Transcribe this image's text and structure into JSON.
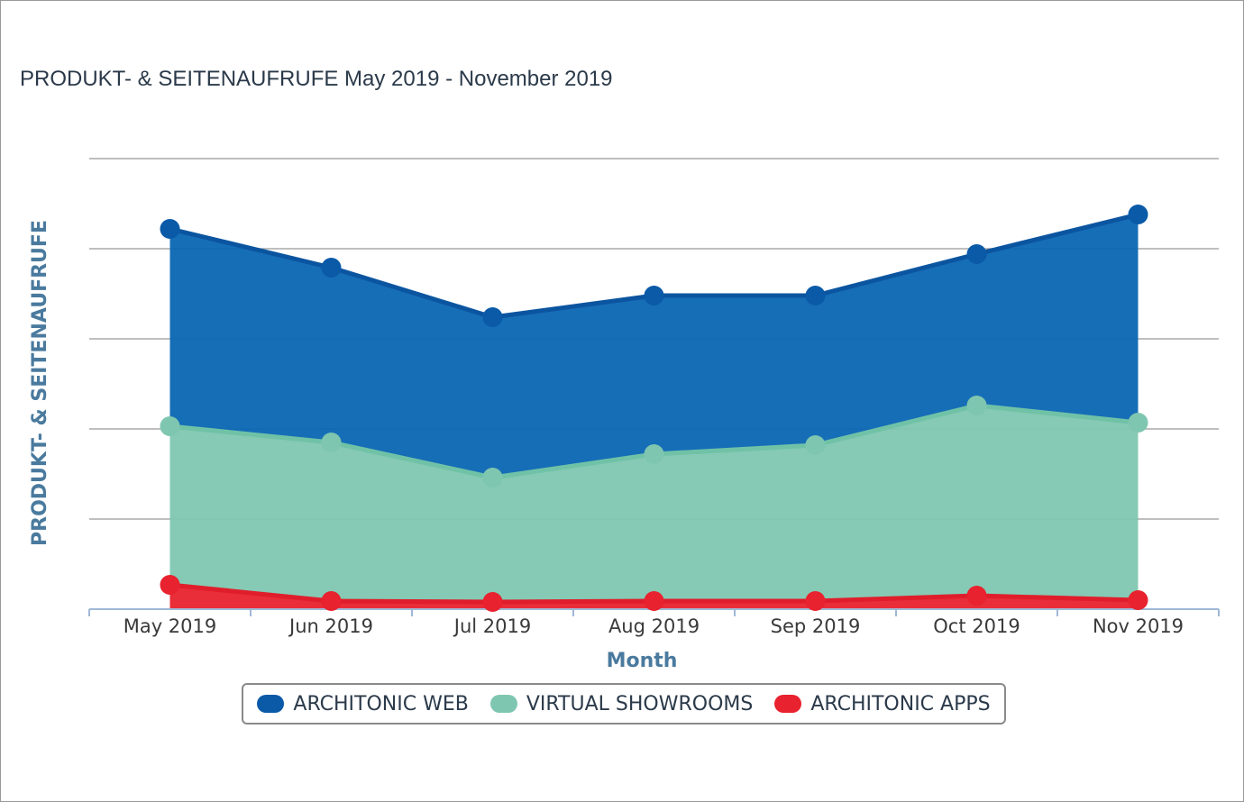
{
  "chart_data": {
    "type": "area",
    "stacked": true,
    "title": "PRODUKT- & SEITENAUFRUFE May 2019 - November 2019",
    "xlabel": "Month",
    "ylabel": "PRODUKT- & SEITENAUFRUFE",
    "categories": [
      "May 2019",
      "Jun 2019",
      "Jul 2019",
      "Aug 2019",
      "Sep 2019",
      "Oct 2019",
      "Nov 2019"
    ],
    "ylim": [
      0,
      5
    ],
    "grid": true,
    "legend_position": "bottom-center",
    "series": [
      {
        "name": "ARCHITONIC APPS",
        "color": "#e8222e",
        "values": [
          0.27,
          0.09,
          0.08,
          0.09,
          0.09,
          0.15,
          0.1
        ]
      },
      {
        "name": "VIRTUAL SHOWROOMS",
        "color": "#7fc6b0",
        "values": [
          1.76,
          1.76,
          1.38,
          1.63,
          1.73,
          2.11,
          1.97
        ]
      },
      {
        "name": "ARCHITONIC WEB",
        "color": "#0a66b3",
        "values": [
          2.19,
          1.94,
          1.78,
          1.76,
          1.66,
          1.68,
          2.31
        ]
      }
    ]
  },
  "legend": {
    "items": [
      {
        "label": "ARCHITONIC WEB",
        "color": "#0a5aa8"
      },
      {
        "label": "VIRTUAL SHOWROOMS",
        "color": "#7fc6b0"
      },
      {
        "label": "ARCHITONIC APPS",
        "color": "#e8222e"
      }
    ]
  }
}
